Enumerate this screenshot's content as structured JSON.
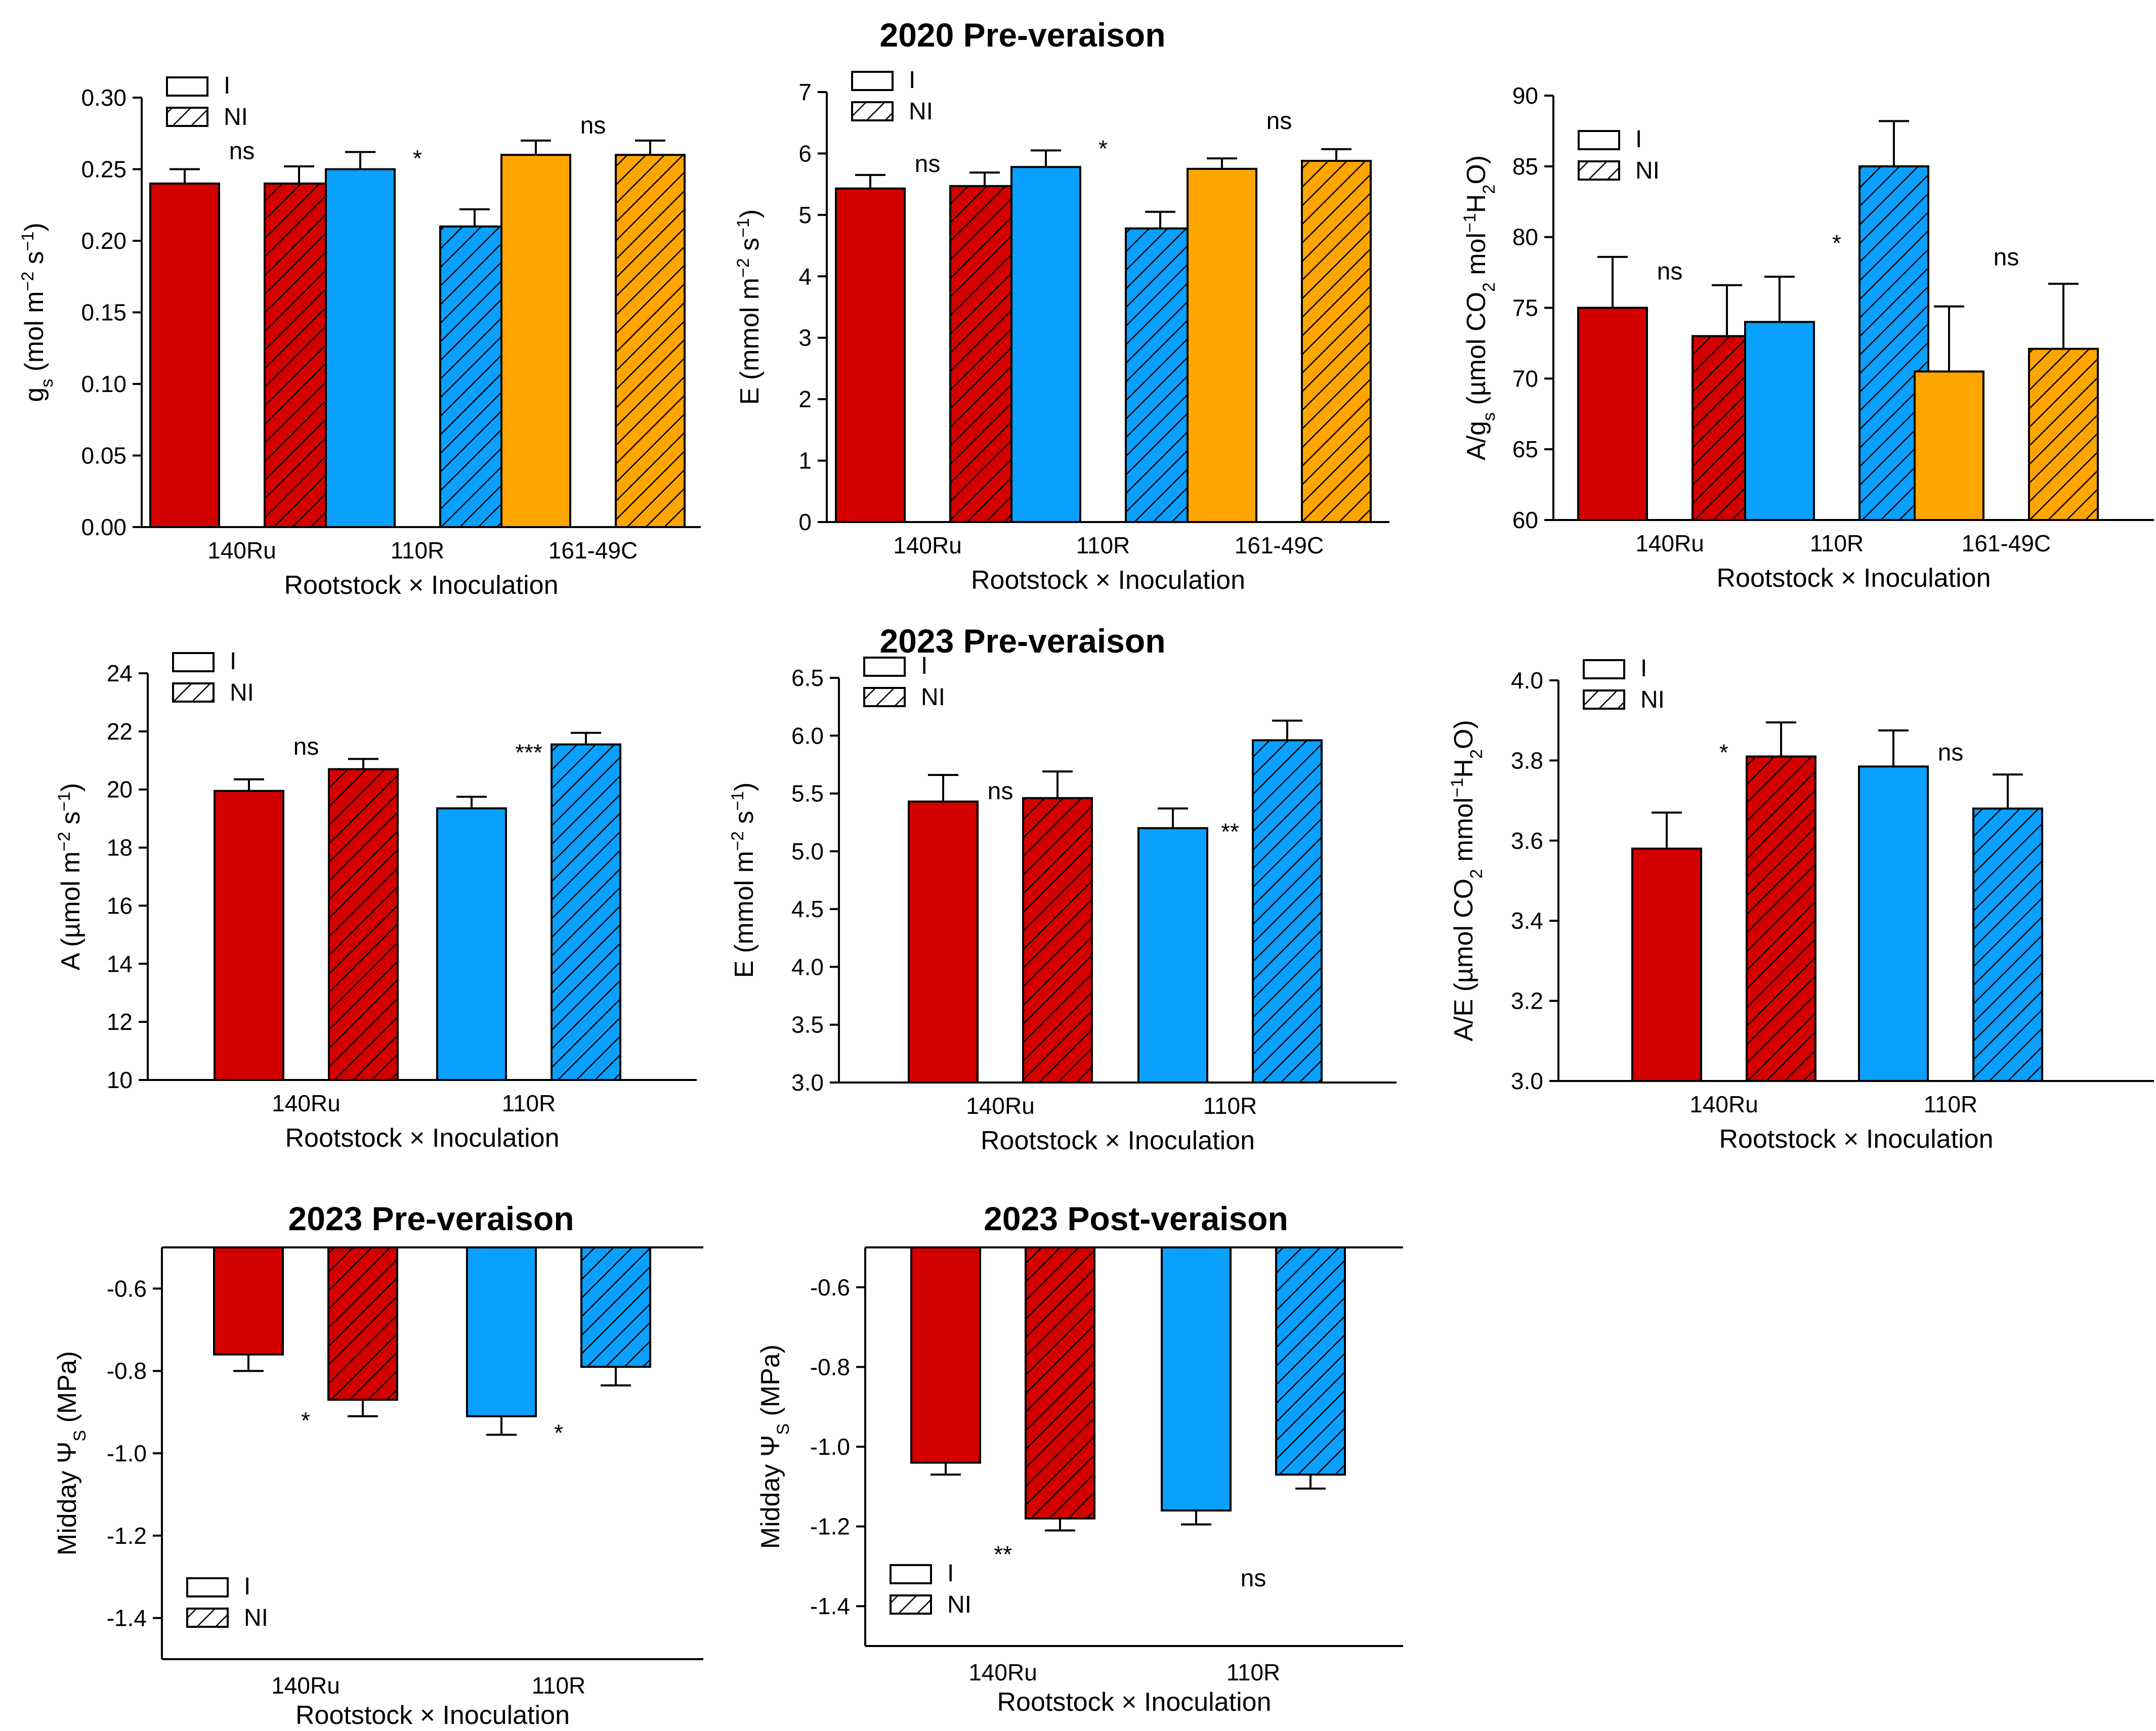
{
  "colors": {
    "140Ru": "#D40000",
    "110R": "#0AA0FF",
    "161-49C": "#FFA500",
    "axis": "#000000"
  },
  "labels": {
    "xlabel": "Rootstock × Inoculation",
    "legend_i": "I",
    "legend_ni": "NI",
    "title_2020_pre": "2020  Pre-veraison",
    "title_2023_pre": "2023  Pre-veraison",
    "title_2023_pre_psi": "2023  Pre-veraison",
    "title_2023_post_psi": "2023  Post-veraison"
  },
  "chart_data": [
    {
      "id": "gs2020",
      "type": "bar",
      "title": "2020  Pre-veraison",
      "ylabel": "g_s (mol m⁻² s⁻¹)",
      "ylabel_parts": [
        [
          "g",
          0
        ],
        [
          "s",
          -1
        ],
        [
          " (mol m",
          0
        ],
        [
          "−2",
          1
        ],
        [
          " s",
          0
        ],
        [
          "−1",
          1
        ],
        [
          ")",
          0
        ]
      ],
      "xlabel": "Rootstock × Inoculation",
      "ylim": [
        0,
        0.3
      ],
      "ytick_step": 0.05,
      "ytick_decimals": 2,
      "categories": [
        "140Ru",
        "110R",
        "161-49C"
      ],
      "series": [
        {
          "name": "I",
          "values": [
            0.24,
            0.25,
            0.26
          ],
          "errors": [
            0.01,
            0.012,
            0.01
          ]
        },
        {
          "name": "NI",
          "values": [
            0.24,
            0.21,
            0.26
          ],
          "errors": [
            0.012,
            0.012,
            0.01
          ]
        }
      ],
      "significance": [
        "ns",
        "*",
        "ns"
      ],
      "sig_y": [
        0.257,
        0.252,
        0.275
      ],
      "legend_position": "top-left"
    },
    {
      "id": "E2020",
      "type": "bar",
      "ylabel": "E (mmol m⁻² s⁻¹)",
      "ylabel_parts": [
        [
          "E (mmol m",
          0
        ],
        [
          "−2",
          1
        ],
        [
          " s",
          0
        ],
        [
          "−1",
          1
        ],
        [
          ")",
          0
        ]
      ],
      "xlabel": "Rootstock × Inoculation",
      "ylim": [
        0,
        7
      ],
      "ytick_step": 1,
      "ytick_decimals": 0,
      "categories": [
        "140Ru",
        "110R",
        "161-49C"
      ],
      "series": [
        {
          "name": "I",
          "values": [
            5.43,
            5.78,
            5.75
          ],
          "errors": [
            0.22,
            0.27,
            0.17
          ]
        },
        {
          "name": "NI",
          "values": [
            5.47,
            4.78,
            5.88
          ],
          "errors": [
            0.22,
            0.27,
            0.19
          ]
        }
      ],
      "significance": [
        "ns",
        "*",
        "ns"
      ],
      "sig_y": [
        5.7,
        5.95,
        6.4
      ],
      "legend_position": "top-left"
    },
    {
      "id": "Ags2020",
      "type": "bar",
      "ylabel": "A/g_s (µmol CO₂ mol⁻¹ H₂O)",
      "ylabel_parts": [
        [
          "A/g",
          0
        ],
        [
          "s",
          -1
        ],
        [
          " (µmol CO",
          0
        ],
        [
          "2",
          -1
        ],
        [
          " mol",
          0
        ],
        [
          "−1",
          1
        ],
        [
          "H",
          0
        ],
        [
          "2",
          -1
        ],
        [
          "O)",
          0
        ]
      ],
      "xlabel": "Rootstock × Inoculation",
      "ylim": [
        60,
        90
      ],
      "ytick_step": 5,
      "ytick_decimals": 0,
      "categories": [
        "140Ru",
        "110R",
        "161-49C"
      ],
      "series": [
        {
          "name": "I",
          "values": [
            75,
            74,
            70.5
          ],
          "errors": [
            3.6,
            3.2,
            4.6
          ]
        },
        {
          "name": "NI",
          "values": [
            73,
            85,
            72.1
          ],
          "errors": [
            3.6,
            3.2,
            4.6
          ]
        }
      ],
      "significance": [
        "ns",
        "*",
        "ns"
      ],
      "sig_y": [
        77,
        79,
        78
      ],
      "legend_position": "top-left"
    },
    {
      "id": "A2023",
      "type": "bar",
      "title": "2023  Pre-veraison",
      "ylabel": "A (µmol m⁻² s⁻¹)",
      "ylabel_parts": [
        [
          "A (µmol m",
          0
        ],
        [
          "−2",
          1
        ],
        [
          " s",
          0
        ],
        [
          "−1",
          1
        ],
        [
          ")",
          0
        ]
      ],
      "xlabel": "Rootstock × Inoculation",
      "ylim": [
        10,
        24
      ],
      "ytick_step": 2,
      "ytick_decimals": 0,
      "categories": [
        "140Ru",
        "110R"
      ],
      "series": [
        {
          "name": "I",
          "values": [
            19.95,
            19.35
          ],
          "errors": [
            0.4,
            0.4
          ]
        },
        {
          "name": "NI",
          "values": [
            20.7,
            21.55
          ],
          "errors": [
            0.35,
            0.4
          ]
        }
      ],
      "significance": [
        "ns",
        "***"
      ],
      "sig_y": [
        21.2,
        21.0
      ],
      "legend_position": "top-left"
    },
    {
      "id": "E2023",
      "type": "bar",
      "ylabel": "E (mmol m⁻² s⁻¹)",
      "ylabel_parts": [
        [
          "E (mmol m",
          0
        ],
        [
          "−2",
          1
        ],
        [
          " s",
          0
        ],
        [
          "−1",
          1
        ],
        [
          ")",
          0
        ]
      ],
      "xlabel": "Rootstock × Inoculation",
      "ylim": [
        3.0,
        6.5
      ],
      "ytick_step": 0.5,
      "ytick_decimals": 1,
      "categories": [
        "140Ru",
        "110R"
      ],
      "series": [
        {
          "name": "I",
          "values": [
            5.43,
            5.2
          ],
          "errors": [
            0.23,
            0.17
          ]
        },
        {
          "name": "NI",
          "values": [
            5.46,
            5.96
          ],
          "errors": [
            0.23,
            0.17
          ]
        }
      ],
      "significance": [
        "ns",
        "**"
      ],
      "sig_y": [
        5.45,
        5.1
      ],
      "legend_position": "top-left"
    },
    {
      "id": "AE2023",
      "type": "bar",
      "ylabel": "A/E (µmol CO₂ mmol⁻¹ H₂O)",
      "ylabel_parts": [
        [
          "A/E (µmol CO",
          0
        ],
        [
          "2",
          -1
        ],
        [
          " mmol",
          0
        ],
        [
          "−1",
          1
        ],
        [
          "H",
          0
        ],
        [
          "2",
          -1
        ],
        [
          "O)",
          0
        ]
      ],
      "xlabel": "Rootstock × Inoculation",
      "ylim": [
        3.0,
        4.0
      ],
      "ytick_step": 0.2,
      "ytick_decimals": 1,
      "categories": [
        "140Ru",
        "110R"
      ],
      "series": [
        {
          "name": "I",
          "values": [
            3.58,
            3.785
          ],
          "errors": [
            0.09,
            0.09
          ]
        },
        {
          "name": "NI",
          "values": [
            3.81,
            3.68
          ],
          "errors": [
            0.085,
            0.085
          ]
        }
      ],
      "significance": [
        "*",
        "ns"
      ],
      "sig_y": [
        3.8,
        3.8
      ],
      "legend_position": "top-left"
    },
    {
      "id": "Psi2023pre",
      "type": "bar",
      "title": "2023  Pre-veraison",
      "ylabel": "Midday Ψ_S (MPa)",
      "ylabel_parts": [
        [
          "Midday Ψ",
          0
        ],
        [
          "S",
          -1
        ],
        [
          " (MPa)",
          0
        ]
      ],
      "xlabel": "Rootstock × Inoculation",
      "ylim": [
        -1.5,
        -0.5
      ],
      "ytick_step": 0.2,
      "ytick_decimals": 1,
      "ytick_min": -1.4,
      "categories": [
        "140Ru",
        "110R"
      ],
      "series": [
        {
          "name": "I",
          "values": [
            -0.76,
            -0.91
          ],
          "errors": [
            0.04,
            0.045
          ]
        },
        {
          "name": "NI",
          "values": [
            -0.87,
            -0.79
          ],
          "errors": [
            0.04,
            0.045
          ]
        }
      ],
      "significance": [
        "*",
        "*"
      ],
      "sig_y": [
        -0.94,
        -0.97
      ],
      "legend_position": "bottom-left"
    },
    {
      "id": "Psi2023post",
      "type": "bar",
      "title": "2023  Post-veraison",
      "ylabel": "Midday Ψ_S (MPa)",
      "ylabel_parts": [
        [
          "Midday Ψ",
          0
        ],
        [
          "S",
          -1
        ],
        [
          " (MPa)",
          0
        ]
      ],
      "xlabel": "Rootstock × Inoculation",
      "ylim": [
        -1.5,
        -0.5
      ],
      "ytick_step": 0.2,
      "ytick_decimals": 1,
      "ytick_min": -1.4,
      "categories": [
        "140Ru",
        "110R"
      ],
      "series": [
        {
          "name": "I",
          "values": [
            -1.04,
            -1.16
          ],
          "errors": [
            0.03,
            0.035
          ]
        },
        {
          "name": "NI",
          "values": [
            -1.18,
            -1.07
          ],
          "errors": [
            0.03,
            0.035
          ]
        }
      ],
      "significance": [
        "**",
        "ns"
      ],
      "sig_y": [
        -1.29,
        -1.35
      ],
      "legend_position": "bottom-left"
    }
  ]
}
